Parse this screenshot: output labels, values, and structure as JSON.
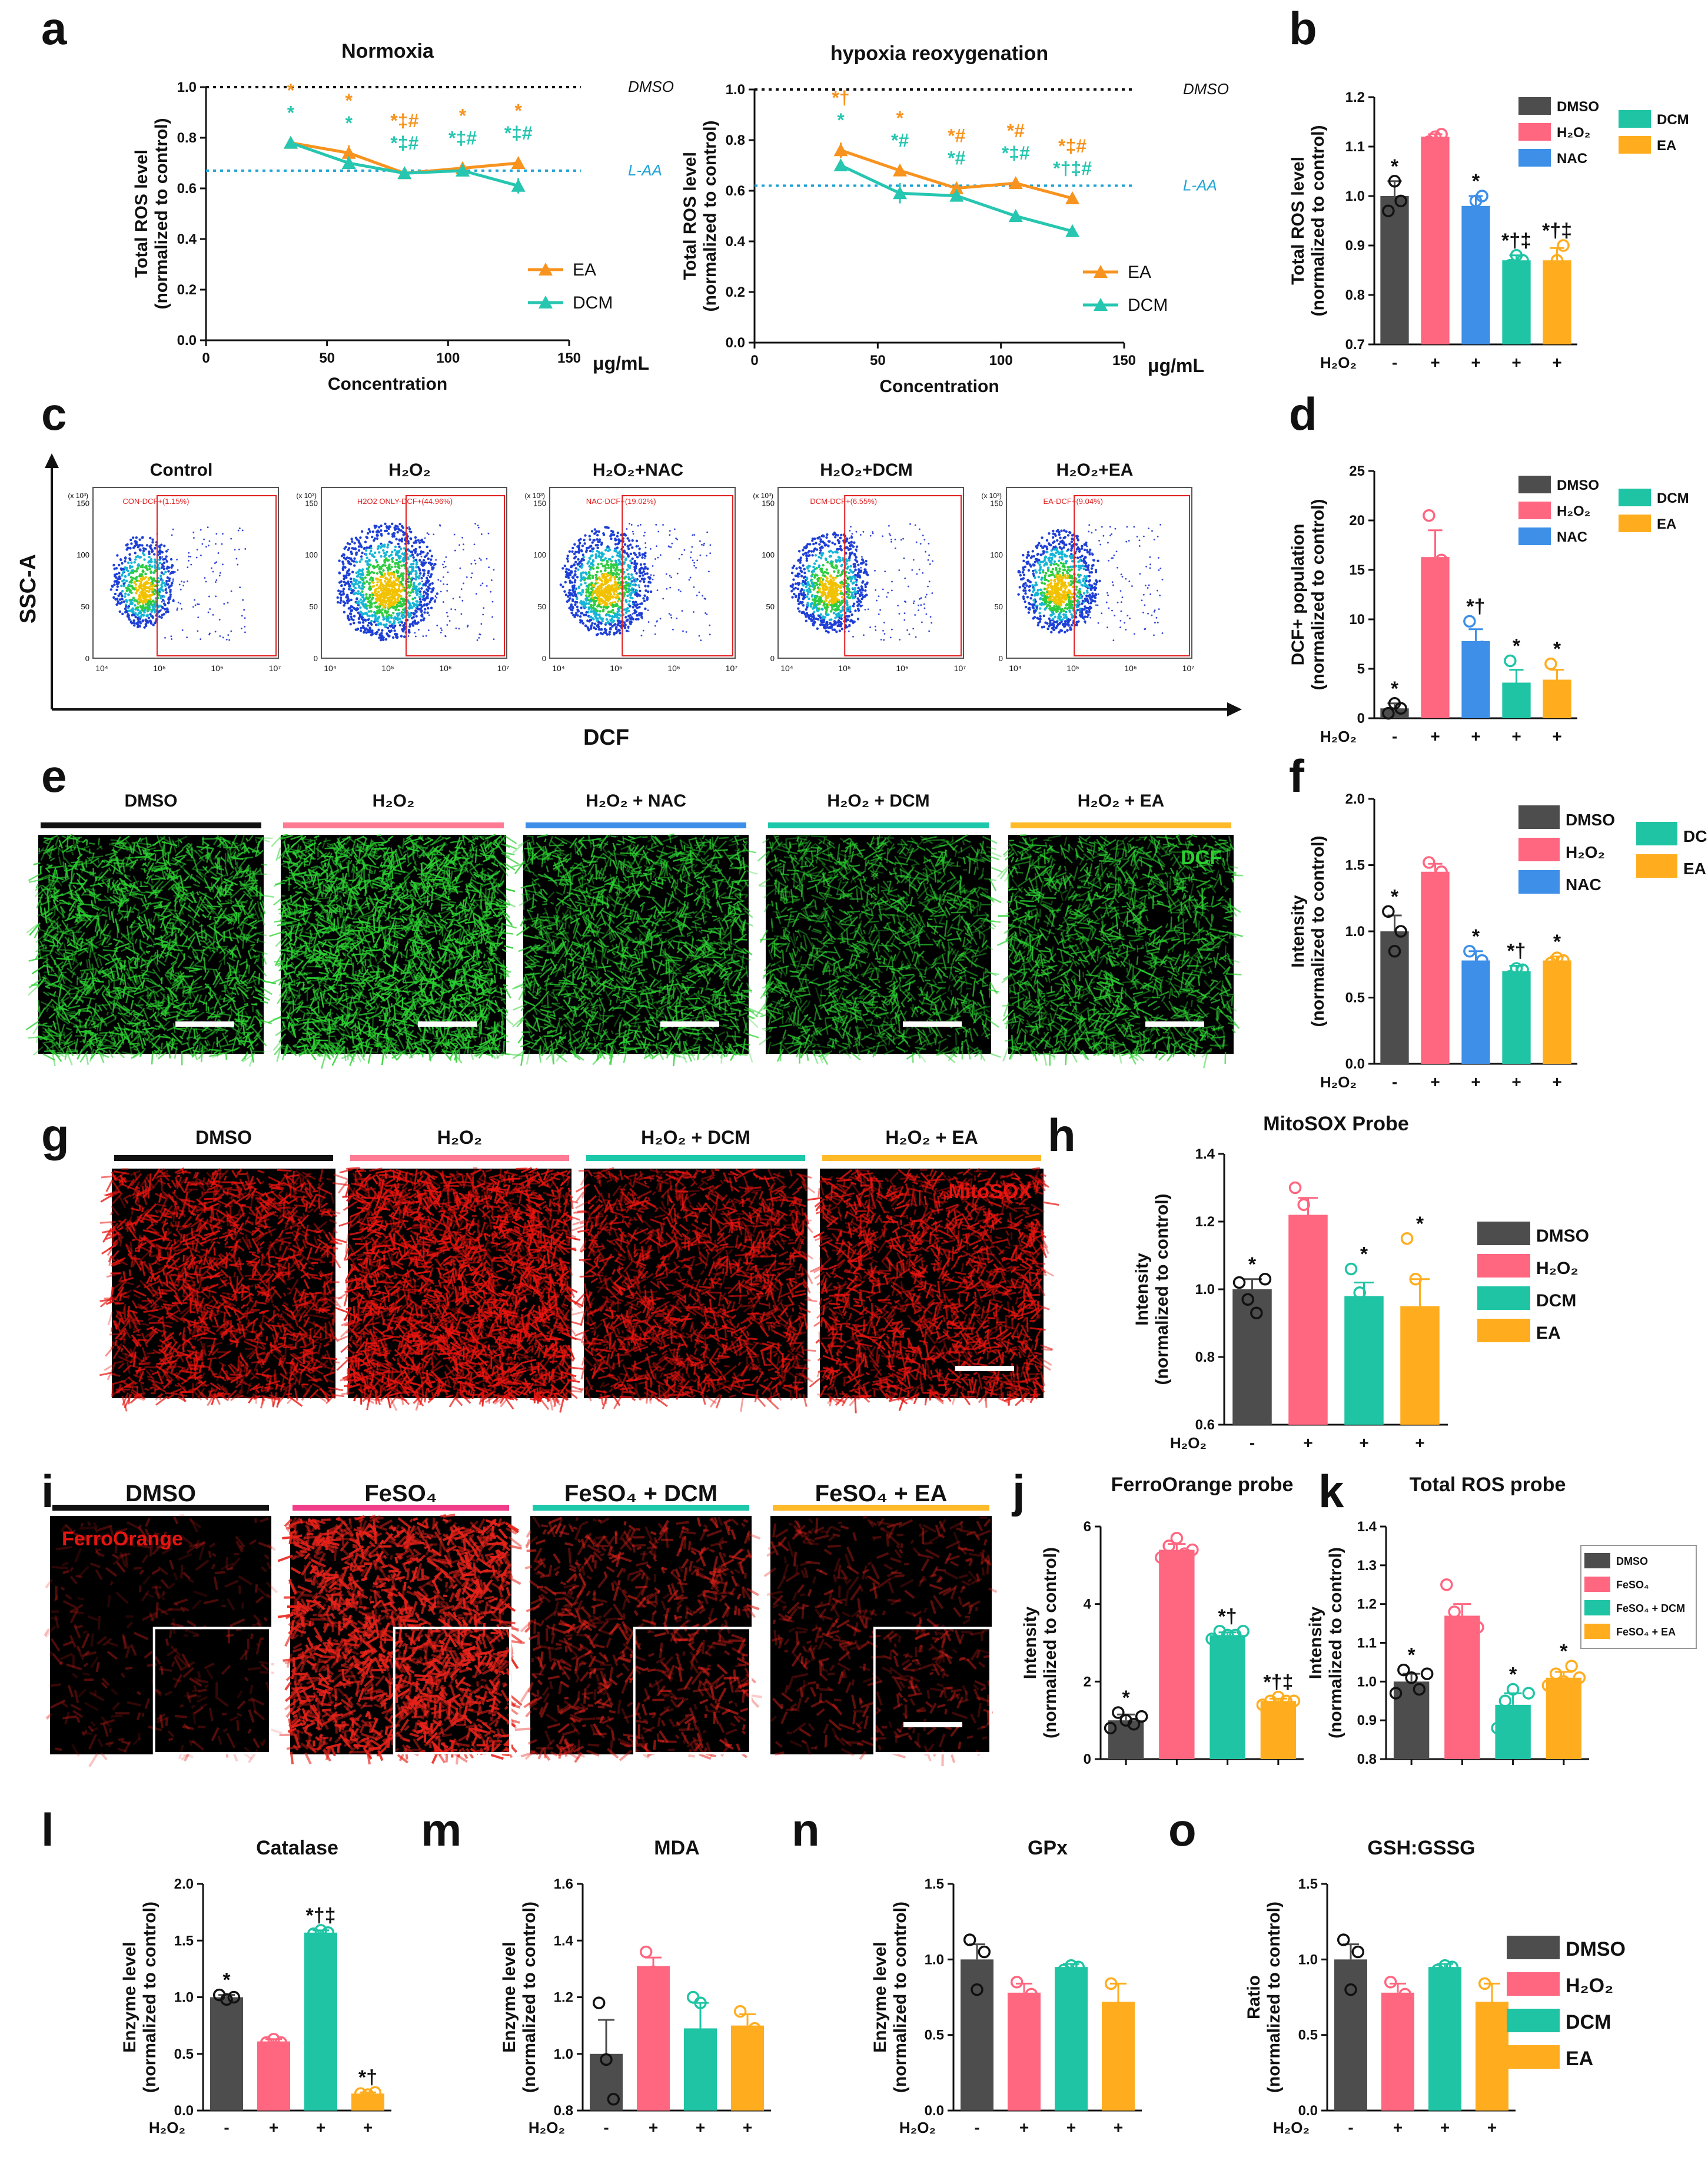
{
  "colors": {
    "DMSO": "#4d4d4d",
    "H2O2": "#ff6680",
    "NAC": "#3d8fe8",
    "DCM": "#1ec4a4",
    "EA": "#ffad1f",
    "FeSO4": "#ff6680",
    "EA_line": "#f7931e",
    "DCM_line": "#26c6b0",
    "LAA_line": "#1fa3d6",
    "green_stain": "#2bd131",
    "red_stain": "#e8140f",
    "bar_black": "#111111",
    "bar_pink": "#ff7b94",
    "bar_blue": "#3c8ee8",
    "bar_teal": "#1dc8aa",
    "bar_yellow": "#ffba2a",
    "bar_magenta": "#ef3d8a"
  },
  "panel_letters": [
    "a",
    "b",
    "c",
    "d",
    "e",
    "f",
    "g",
    "h",
    "i",
    "j",
    "k",
    "l",
    "m",
    "n",
    "o"
  ],
  "chart_data": [
    {
      "id": "a1",
      "type": "line",
      "title": "Normoxia",
      "xlabel": "Concentration",
      "xunit": "μg/mL",
      "ylabel": [
        "Total ROS level",
        "(normalized to control)"
      ],
      "xlim": [
        0,
        150
      ],
      "ylim": [
        0,
        1.0
      ],
      "xticks": [
        "0",
        "50",
        "100",
        "150"
      ],
      "yticks": [
        "0.0",
        "0.2",
        "0.4",
        "0.6",
        "0.8",
        "1.0"
      ],
      "ref_lines": [
        {
          "label": "DMSO",
          "y": 1.0,
          "style": "black"
        },
        {
          "label": "L-AA",
          "y": 0.67,
          "style": "blue"
        }
      ],
      "series": [
        {
          "name": "EA",
          "x": [
            35,
            59,
            82,
            106,
            129
          ],
          "y": [
            0.78,
            0.74,
            0.66,
            0.68,
            0.7
          ],
          "err": [
            0.02,
            0.03,
            0.02,
            0.02,
            0.02
          ],
          "marks": [
            "*",
            "*",
            "*‡#",
            "*",
            "*"
          ]
        },
        {
          "name": "DCM",
          "x": [
            35,
            59,
            82,
            106,
            129
          ],
          "y": [
            0.78,
            0.7,
            0.66,
            0.67,
            0.61
          ],
          "err": [
            0.02,
            0.02,
            0.02,
            0.02,
            0.03
          ],
          "marks": [
            "*",
            "*",
            "*‡#",
            "*‡#",
            "*‡#"
          ]
        }
      ]
    },
    {
      "id": "a2",
      "type": "line",
      "title": "hypoxia reoxygenation",
      "xlabel": "Concentration",
      "xunit": "μg/mL",
      "ylabel": [
        "Total ROS level",
        "(normalized to control)"
      ],
      "xlim": [
        0,
        150
      ],
      "ylim": [
        0,
        1.0
      ],
      "xticks": [
        "0",
        "50",
        "100",
        "150"
      ],
      "yticks": [
        "0.0",
        "0.2",
        "0.4",
        "0.6",
        "0.8",
        "1.0"
      ],
      "ref_lines": [
        {
          "label": "DMSO",
          "y": 1.0,
          "style": "black"
        },
        {
          "label": "L-AA",
          "y": 0.62,
          "style": "blue"
        }
      ],
      "series": [
        {
          "name": "EA",
          "x": [
            35,
            59,
            82,
            106,
            129
          ],
          "y": [
            0.76,
            0.68,
            0.61,
            0.63,
            0.57
          ],
          "err": [
            0.03,
            0.02,
            0.02,
            0.02,
            0.02
          ],
          "marks": [
            "*†",
            "*",
            "*#",
            "*#",
            "*‡#"
          ]
        },
        {
          "name": "DCM",
          "x": [
            35,
            59,
            82,
            106,
            129
          ],
          "y": [
            0.7,
            0.59,
            0.58,
            0.5,
            0.44
          ],
          "err": [
            0.02,
            0.04,
            0.02,
            0.01,
            0.01
          ],
          "marks": [
            "*",
            "*#",
            "*#",
            "*‡#",
            "*†‡#"
          ]
        }
      ]
    },
    {
      "id": "b",
      "type": "bar",
      "ylabel": [
        "Total ROS level",
        "(normalized to control)"
      ],
      "ylim": [
        0.7,
        1.2
      ],
      "yticks": [
        "0.7",
        "0.8",
        "0.9",
        "1.0",
        "1.1",
        "1.2"
      ],
      "treatment_label": "H₂O₂",
      "treatment": [
        "-",
        "+",
        "+",
        "+",
        "+"
      ],
      "categories": [
        "DMSO",
        "H₂O₂",
        "NAC",
        "DCM",
        "EA"
      ],
      "values": [
        1.0,
        1.12,
        0.98,
        0.87,
        0.87
      ],
      "err": [
        0.03,
        0.005,
        0.02,
        0.01,
        0.025
      ],
      "marks": [
        "*",
        "",
        "*",
        "*†‡",
        "*†‡"
      ],
      "points": [
        [
          0.97,
          1.03,
          0.99
        ],
        [
          1.11,
          1.12,
          1.125
        ],
        [
          0.95,
          0.99,
          1.0
        ],
        [
          0.86,
          0.88,
          0.87
        ],
        [
          0.84,
          0.87,
          0.9
        ]
      ]
    },
    {
      "id": "d",
      "type": "bar",
      "ylabel": [
        "DCF+ population",
        "(normalized to control)"
      ],
      "ylim": [
        0,
        25
      ],
      "yticks": [
        "0",
        "5",
        "10",
        "15",
        "20",
        "25"
      ],
      "treatment_label": "H₂O₂",
      "treatment": [
        "-",
        "+",
        "+",
        "+",
        "+"
      ],
      "categories": [
        "DMSO",
        "H₂O₂",
        "NAC",
        "DCM",
        "EA"
      ],
      "values": [
        1.0,
        16.3,
        7.8,
        3.6,
        3.9
      ],
      "err": [
        0.5,
        2.7,
        1.2,
        1.3,
        1.0
      ],
      "marks": [
        "*",
        "",
        "*†",
        "*",
        "*"
      ],
      "points": [
        [
          0.5,
          1.5,
          1.0
        ],
        [
          20.5,
          12.5,
          16
        ],
        [
          9.8,
          6.5,
          7.2
        ],
        [
          5.8,
          2.5,
          2.5
        ],
        [
          5.5,
          3.0,
          3.2
        ]
      ]
    },
    {
      "id": "f",
      "type": "bar",
      "ylabel": [
        "Intensity",
        "(normalized to control)"
      ],
      "ylim": [
        0,
        2.0
      ],
      "yticks": [
        "0.0",
        "0.5",
        "1.0",
        "1.5",
        "2.0"
      ],
      "treatment_label": "H₂O₂",
      "treatment": [
        "-",
        "+",
        "+",
        "+",
        "+"
      ],
      "categories": [
        "DMSO",
        "H₂O₂",
        "NAC",
        "DCM",
        "EA"
      ],
      "values": [
        1.0,
        1.45,
        0.78,
        0.7,
        0.78
      ],
      "err": [
        0.12,
        0.06,
        0.07,
        0.04,
        0.03
      ],
      "marks": [
        "*",
        "",
        "*",
        "*†",
        "*"
      ],
      "points": [
        [
          1.15,
          0.85,
          1.0
        ],
        [
          1.52,
          1.38,
          1.45
        ],
        [
          0.85,
          0.7,
          0.78
        ],
        [
          0.66,
          0.72,
          0.71
        ],
        [
          0.76,
          0.8,
          0.78
        ]
      ]
    },
    {
      "id": "h",
      "type": "bar",
      "title": "MitoSOX Probe",
      "ylabel": [
        "Intensity",
        "(normalized to control)"
      ],
      "ylim": [
        0.6,
        1.4
      ],
      "yticks": [
        "0.6",
        "0.8",
        "1.0",
        "1.2",
        "1.4"
      ],
      "treatment_label": "H₂O₂",
      "treatment": [
        "-",
        "+",
        "+",
        "+"
      ],
      "categories": [
        "DMSO",
        "H₂O₂",
        "DCM",
        "EA"
      ],
      "values": [
        1.0,
        1.22,
        0.98,
        0.95
      ],
      "err": [
        0.03,
        0.05,
        0.04,
        0.08
      ],
      "marks": [
        "*",
        "",
        "*",
        "*"
      ],
      "points": [
        [
          1.02,
          0.97,
          0.93,
          1.03
        ],
        [
          1.3,
          1.25,
          1.15,
          1.18
        ],
        [
          1.06,
          0.99,
          0.93,
          0.93
        ],
        [
          1.15,
          1.03,
          0.85,
          0.75
        ]
      ]
    },
    {
      "id": "j",
      "type": "bar",
      "title": "FerroOrange probe",
      "ylabel": [
        "Intensity",
        "(normalized to control)"
      ],
      "ylim": [
        0,
        6
      ],
      "yticks": [
        "0",
        "2",
        "4",
        "6"
      ],
      "categories": [
        "DMSO",
        "FeSO₄",
        "FeSO₄ + DCM",
        "FeSO₄ + EA"
      ],
      "values": [
        1.0,
        5.4,
        3.2,
        1.5
      ],
      "err": [
        0.15,
        0.15,
        0.07,
        0.06
      ],
      "marks": [
        "*",
        "",
        "*†",
        "*†‡"
      ],
      "points": [
        [
          0.8,
          1.2,
          1.0,
          0.9,
          1.1
        ],
        [
          5.2,
          5.5,
          5.7,
          5.3,
          5.4
        ],
        [
          3.1,
          3.3,
          3.2,
          3.2,
          3.3
        ],
        [
          1.4,
          1.5,
          1.6,
          1.5,
          1.5
        ]
      ]
    },
    {
      "id": "k",
      "type": "bar",
      "title": "Total ROS probe",
      "ylabel": [
        "Intensity",
        "(normalized to control)"
      ],
      "ylim": [
        0.8,
        1.4
      ],
      "yticks": [
        "0.8",
        "0.9",
        "1.0",
        "1.1",
        "1.2",
        "1.3",
        "1.4"
      ],
      "categories": [
        "DMSO",
        "FeSO₄",
        "FeSO₄ + DCM",
        "FeSO₄ + EA"
      ],
      "values": [
        1.0,
        1.17,
        0.94,
        1.01
      ],
      "err": [
        0.02,
        0.03,
        0.03,
        0.015
      ],
      "marks": [
        "*",
        "",
        "*",
        "*"
      ],
      "points": [
        [
          0.97,
          1.03,
          1.01,
          0.98,
          1.02
        ],
        [
          1.25,
          1.18,
          1.12,
          1.15,
          1.14
        ],
        [
          0.88,
          0.95,
          0.98,
          0.92,
          0.97
        ],
        [
          0.99,
          1.02,
          1.0,
          1.04,
          1.01
        ]
      ]
    },
    {
      "id": "l",
      "type": "bar",
      "title": "Catalase",
      "ylabel": [
        "Enzyme level",
        "(normalized to control)"
      ],
      "ylim": [
        0,
        2.0
      ],
      "yticks": [
        "0.0",
        "0.5",
        "1.0",
        "1.5",
        "2.0"
      ],
      "treatment_label": "H₂O₂",
      "treatment": [
        "-",
        "+",
        "+",
        "+"
      ],
      "categories": [
        "DMSO",
        "H₂O₂",
        "DCM",
        "EA"
      ],
      "values": [
        1.0,
        0.61,
        1.57,
        0.15
      ],
      "err": [
        0.02,
        0.02,
        0.02,
        0.01
      ],
      "marks": [
        "*",
        "",
        "*†‡",
        "*†"
      ],
      "points": [
        [
          1.02,
          0.98,
          1.0
        ],
        [
          0.6,
          0.63,
          0.6
        ],
        [
          1.56,
          1.59,
          1.57
        ],
        [
          0.15,
          0.14,
          0.16
        ]
      ]
    },
    {
      "id": "m",
      "type": "bar",
      "title": "MDA",
      "ylabel": [
        "Enzyme level",
        "(normalized to control)"
      ],
      "ylim": [
        0.8,
        1.6
      ],
      "yticks": [
        "0.8",
        "1.0",
        "1.2",
        "1.4",
        "1.6"
      ],
      "treatment_label": "H₂O₂",
      "treatment": [
        "-",
        "+",
        "+",
        "+"
      ],
      "categories": [
        "DMSO",
        "H₂O₂",
        "DCM",
        "EA"
      ],
      "values": [
        1.0,
        1.31,
        1.09,
        1.1
      ],
      "err": [
        0.12,
        0.03,
        0.09,
        0.04
      ],
      "marks": [
        "",
        "",
        "",
        ""
      ],
      "points": [
        [
          1.18,
          0.98,
          0.84
        ],
        [
          1.36,
          1.29,
          1.28
        ],
        [
          1.2,
          1.18,
          0.89
        ],
        [
          1.15,
          1.06,
          1.09
        ]
      ]
    },
    {
      "id": "n",
      "type": "bar",
      "title": "GPx",
      "ylabel": [
        "Enzyme level",
        "(normalized to control)"
      ],
      "ylim": [
        0,
        1.5
      ],
      "yticks": [
        "0.0",
        "0.5",
        "1.0",
        "1.5"
      ],
      "treatment_label": "H₂O₂",
      "treatment": [
        "-",
        "+",
        "+",
        "+"
      ],
      "categories": [
        "DMSO",
        "H₂O₂",
        "DCM",
        "EA"
      ],
      "values": [
        1.0,
        0.78,
        0.95,
        0.72
      ],
      "err": [
        0.1,
        0.06,
        0.02,
        0.12
      ],
      "marks": [
        "",
        "",
        "",
        ""
      ],
      "points": [
        [
          1.13,
          0.8,
          1.05
        ],
        [
          0.85,
          0.72,
          0.77
        ],
        [
          0.93,
          0.96,
          0.95
        ],
        [
          0.84,
          0.68,
          0.55
        ]
      ]
    },
    {
      "id": "o",
      "type": "bar",
      "title": "GSH:GSSG",
      "ylabel": [
        "Ratio",
        "(normalized to control)"
      ],
      "ylim": [
        0,
        1.5
      ],
      "yticks": [
        "0.0",
        "0.5",
        "1.0",
        "1.5"
      ],
      "treatment_label": "H₂O₂",
      "treatment": [
        "-",
        "+",
        "+",
        "+"
      ],
      "categories": [
        "DMSO",
        "H₂O₂",
        "DCM",
        "EA"
      ],
      "values": [
        1.0,
        0.78,
        0.95,
        0.72
      ],
      "err": [
        0.1,
        0.06,
        0.02,
        0.12
      ],
      "marks": [
        "",
        "",
        "",
        ""
      ],
      "points": [
        [
          1.13,
          0.8,
          1.05
        ],
        [
          0.85,
          0.72,
          0.77
        ],
        [
          0.93,
          0.96,
          0.95
        ],
        [
          0.84,
          0.68,
          0.55
        ]
      ]
    }
  ],
  "legends": {
    "a": [
      "EA",
      "DCM"
    ],
    "bdf": [
      "DMSO",
      "H₂O₂",
      "NAC",
      "DCM",
      "EA"
    ],
    "h": [
      "DMSO",
      "H₂O₂",
      "DCM",
      "EA"
    ],
    "k": [
      "DMSO",
      "FeSO₄",
      "FeSO₄ + DCM",
      "FeSO₄ + EA"
    ],
    "lmno": [
      "DMSO",
      "H₂O₂",
      "DCM",
      "EA"
    ]
  },
  "flow_c": {
    "yaxis": "SSC-A",
    "xaxis": "DCF",
    "titles": [
      "Control",
      "H₂O₂",
      "H₂O₂+NAC",
      "H₂O₂+DCM",
      "H₂O₂+EA"
    ],
    "gates": [
      "CON-DCF+(1.15%)",
      "H2O2 ONLY-DCF+(44.96%)",
      "NAC-DCF+(19.02%)",
      "DCM-DCF+(6.55%)",
      "EA-DCF+(9.04%)"
    ],
    "density": [
      0.28,
      1.0,
      0.75,
      0.55,
      0.6
    ],
    "positive_fraction": [
      0.0115,
      0.4496,
      0.1902,
      0.0655,
      0.0904
    ],
    "yticks": [
      "0",
      "50",
      "100",
      "150"
    ],
    "ytick_scale": "(x 10³)",
    "xticks": [
      "10⁴",
      "10⁵",
      "10⁶",
      "10⁷"
    ]
  },
  "panel_e": {
    "titles": [
      "DMSO",
      "H₂O₂",
      "H₂O₂ + NAC",
      "H₂O₂ + DCM",
      "H₂O₂ + EA"
    ],
    "stain_label": "DCF",
    "brightness": [
      0.75,
      1.0,
      0.7,
      0.6,
      0.65
    ]
  },
  "panel_g": {
    "titles": [
      "DMSO",
      "H₂O₂",
      "H₂O₂ + DCM",
      "H₂O₂ + EA"
    ],
    "stain_label": "MitoSOX",
    "brightness": [
      0.7,
      1.0,
      0.65,
      0.7
    ]
  },
  "panel_i": {
    "titles": [
      "DMSO",
      "FeSO₄",
      "FeSO₄ + DCM",
      "FeSO₄ + EA"
    ],
    "stain_label": "FerroOrange",
    "brightness": [
      0.2,
      1.0,
      0.45,
      0.3
    ]
  }
}
